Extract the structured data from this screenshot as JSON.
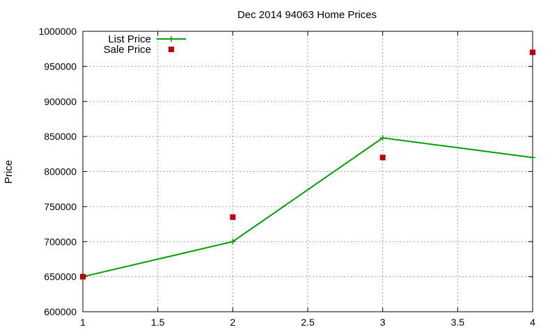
{
  "chart_data": {
    "type": "line",
    "title": "Dec 2014 94063 Home Prices",
    "xlabel": "",
    "ylabel": "Price",
    "xlim": [
      1,
      4
    ],
    "ylim": [
      600000,
      1000000
    ],
    "x_ticks": [
      "1",
      "1.5",
      "2",
      "2.5",
      "3",
      "3.5",
      "4"
    ],
    "x_tick_values": [
      1,
      1.5,
      2,
      2.5,
      3,
      3.5,
      4
    ],
    "y_ticks": [
      "600000",
      "650000",
      "700000",
      "750000",
      "800000",
      "850000",
      "900000",
      "950000",
      "1000000"
    ],
    "y_tick_values": [
      600000,
      650000,
      700000,
      750000,
      800000,
      850000,
      900000,
      950000,
      1000000
    ],
    "grid": true,
    "legend_position": "top-left",
    "series": [
      {
        "name": "List Price",
        "kind": "line+points",
        "marker": "plus",
        "color": "#00a000",
        "x": [
          1,
          2,
          3,
          4
        ],
        "y": [
          650000,
          700000,
          848000,
          820000
        ]
      },
      {
        "name": "Sale Price",
        "kind": "points",
        "marker": "square",
        "color": "#c00000",
        "x": [
          1,
          2,
          3,
          4
        ],
        "y": [
          650000,
          735000,
          820000,
          970000
        ]
      }
    ]
  }
}
